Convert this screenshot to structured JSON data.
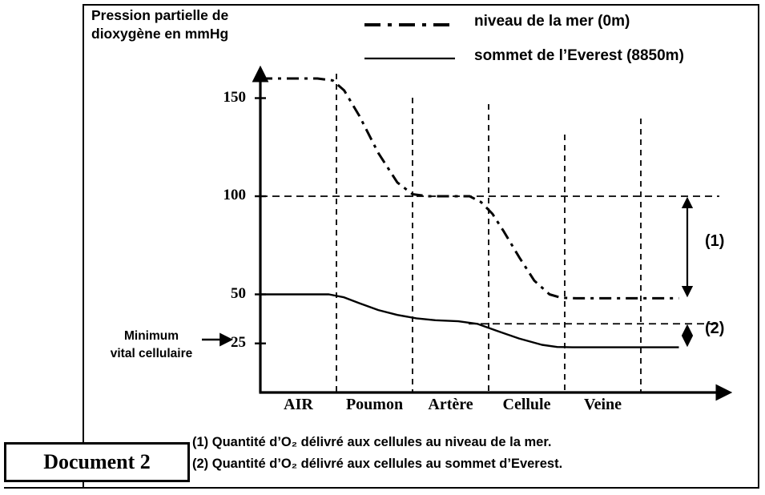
{
  "document": {
    "label": "Document 2"
  },
  "chart": {
    "title_line1": "Pression partielle de",
    "title_line2": "dioxygène en mmHg",
    "min_vital_line1": "Minimum",
    "min_vital_line2": "vital cellulaire",
    "annotation_1": "(1)",
    "annotation_2": "(2)"
  },
  "notes": {
    "note1": "(1) Quantité d’O₂ délivré aux cellules au niveau de la mer.",
    "note2": "(2) Quantité d’O₂ délivré aux cellules au sommet d’Everest."
  },
  "chart_data": {
    "type": "line",
    "title": "Pression partielle de dioxygène en mmHg",
    "ylabel": "Pression partielle de dioxygène en mmHg",
    "xlabel": "",
    "categories": [
      "AIR",
      "Poumon",
      "Artère",
      "Cellule",
      "Veine"
    ],
    "y_ticks": [
      150,
      100,
      50,
      25
    ],
    "ylim": [
      0,
      175
    ],
    "legend_position": "top",
    "grid": "dashed vertical separators between compartments",
    "guide_values": [
      100,
      35
    ],
    "series": [
      {
        "name": "niveau de la mer (0m)",
        "style": "dash-dot",
        "values_by_compartment": {
          "AIR": 160,
          "Poumon": "160→100",
          "Artère": 100,
          "Cellule": "100→48",
          "Veine": 48
        },
        "points": [
          [
            0,
            160
          ],
          [
            0.75,
            160
          ],
          [
            0.95,
            159
          ],
          [
            1.1,
            154
          ],
          [
            1.3,
            141
          ],
          [
            1.55,
            122
          ],
          [
            1.8,
            107
          ],
          [
            2.0,
            101
          ],
          [
            2.2,
            100
          ],
          [
            2.75,
            100
          ],
          [
            2.9,
            97
          ],
          [
            3.05,
            91
          ],
          [
            3.2,
            82
          ],
          [
            3.4,
            69
          ],
          [
            3.6,
            57
          ],
          [
            3.8,
            50
          ],
          [
            3.95,
            48.3
          ],
          [
            4.15,
            48
          ],
          [
            5.5,
            48
          ]
        ]
      },
      {
        "name": "sommet de l’Everest (8850m)",
        "style": "solid",
        "values_by_compartment": {
          "AIR": 50,
          "Poumon": "50→37",
          "Artère": 36,
          "Cellule": "36→23",
          "Veine": 23
        },
        "points": [
          [
            0,
            50
          ],
          [
            0.9,
            50
          ],
          [
            1.1,
            48.5
          ],
          [
            1.3,
            45.5
          ],
          [
            1.55,
            42
          ],
          [
            1.8,
            39.5
          ],
          [
            2.05,
            37.8
          ],
          [
            2.3,
            36.8
          ],
          [
            2.6,
            36.3
          ],
          [
            2.85,
            35
          ],
          [
            3.1,
            31.5
          ],
          [
            3.4,
            27.5
          ],
          [
            3.7,
            24.3
          ],
          [
            3.9,
            23.2
          ],
          [
            4.1,
            23
          ],
          [
            5.5,
            23
          ]
        ]
      }
    ],
    "annotations": [
      {
        "id": "(1)",
        "span_mmHg": [
          100,
          48
        ]
      },
      {
        "id": "(2)",
        "span_mmHg": [
          35,
          23
        ]
      },
      {
        "id": "Minimum vital cellulaire",
        "at_mmHg": 25
      }
    ]
  }
}
